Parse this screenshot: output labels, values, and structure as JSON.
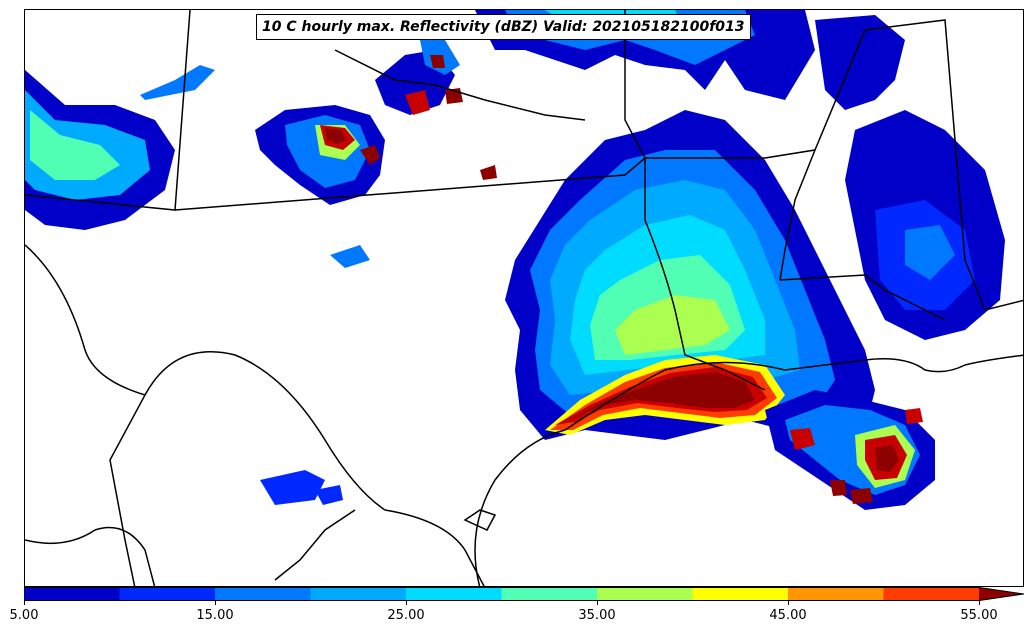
{
  "title": "10 C hourly max. Reflectivity (dBZ) Valid: 202105182100f013",
  "colorbar": {
    "min": 5.0,
    "max": 55.0,
    "step": 5.0,
    "extend": "max",
    "colors": [
      "#0000c8",
      "#0028ff",
      "#0078ff",
      "#00aaff",
      "#00dcff",
      "#50ffb4",
      "#aaff50",
      "#ffff00",
      "#ff9600",
      "#ff3c00",
      "#c80000",
      "#8c0000"
    ],
    "tick_labels": [
      "5.00",
      "15.00",
      "25.00",
      "35.00",
      "45.00",
      "55.00"
    ]
  },
  "features": {
    "coastline": "Texas / Louisiana Gulf Coast",
    "borders": "state and international boundaries"
  }
}
